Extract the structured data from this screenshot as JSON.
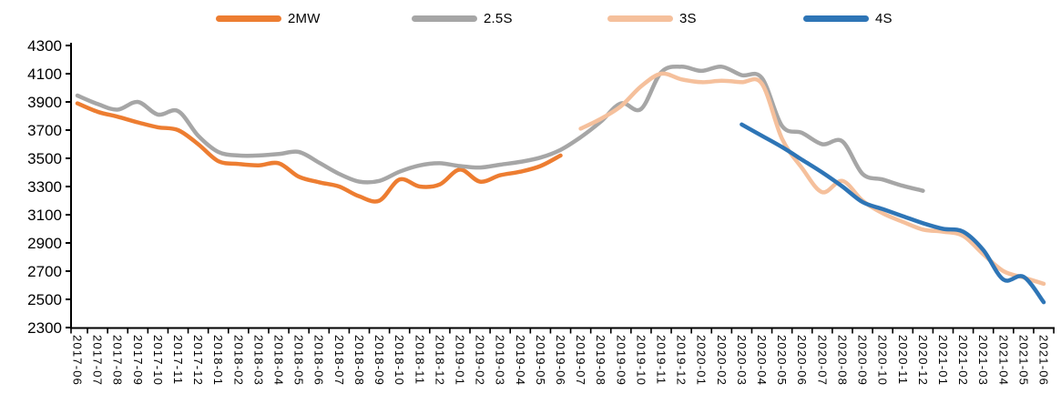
{
  "chart_data": {
    "type": "line",
    "title": "",
    "xlabel": "",
    "ylabel": "",
    "ylim": [
      2300,
      4300
    ],
    "yticks": [
      4300,
      4100,
      3900,
      3700,
      3500,
      3300,
      3100,
      2900,
      2700,
      2500,
      2300
    ],
    "grid": false,
    "legend_position": "top",
    "line_style": "smoothed",
    "x": [
      "2017-06",
      "2017-07",
      "2017-08",
      "2017-09",
      "2017-10",
      "2017-11",
      "2017-12",
      "2018-01",
      "2018-02",
      "2018-03",
      "2018-04",
      "2018-05",
      "2018-06",
      "2018-07",
      "2018-08",
      "2018-09",
      "2018-10",
      "2018-11",
      "2018-12",
      "2019-01",
      "2019-02",
      "2019-03",
      "2019-04",
      "2019-05",
      "2019-06",
      "2019-07",
      "2019-08",
      "2019-09",
      "2019-10",
      "2019-11",
      "2019-12",
      "2020-01",
      "2020-02",
      "2020-03",
      "2020-04",
      "2020-05",
      "2020-06",
      "2020-07",
      "2020-08",
      "2020-09",
      "2020-10",
      "2020-11",
      "2020-12",
      "2021-01",
      "2021-02",
      "2021-03",
      "2021-04",
      "2021-05",
      "2021-06"
    ],
    "series": [
      {
        "name": "2MW",
        "color": "#ED7D31",
        "values": [
          3890,
          3830,
          3795,
          3755,
          3720,
          3700,
          3600,
          3480,
          3460,
          3450,
          3465,
          3370,
          3330,
          3300,
          3230,
          3200,
          3350,
          3300,
          3315,
          3420,
          3335,
          3380,
          3405,
          3445,
          3520,
          null,
          null,
          null,
          null,
          null,
          null,
          null,
          null,
          null,
          null,
          null,
          null,
          null,
          null,
          null,
          null,
          null,
          null,
          null,
          null,
          null,
          null,
          null,
          null
        ]
      },
      {
        "name": "2.5S",
        "color": "#A6A6A6",
        "values": [
          3945,
          3885,
          3845,
          3900,
          3810,
          3835,
          3660,
          3545,
          3520,
          3520,
          3530,
          3545,
          3470,
          3390,
          3335,
          3340,
          3405,
          3450,
          3465,
          3445,
          3435,
          3455,
          3475,
          3505,
          3560,
          3650,
          3760,
          3890,
          3850,
          4110,
          4150,
          4120,
          4150,
          4090,
          4070,
          3730,
          3680,
          3600,
          3620,
          3390,
          3350,
          3305,
          3270,
          null,
          null,
          null,
          null,
          null,
          null
        ]
      },
      {
        "name": "3S",
        "color": "#F5C09C",
        "values": [
          null,
          null,
          null,
          null,
          null,
          null,
          null,
          null,
          null,
          null,
          null,
          null,
          null,
          null,
          null,
          null,
          null,
          null,
          null,
          null,
          null,
          null,
          null,
          null,
          null,
          3710,
          3780,
          3870,
          4010,
          4100,
          4060,
          4040,
          4050,
          4040,
          4030,
          3640,
          3430,
          3260,
          3340,
          3200,
          3110,
          3050,
          2995,
          2980,
          2950,
          2820,
          2700,
          2655,
          2610
        ]
      },
      {
        "name": "4S",
        "color": "#2E75B6",
        "values": [
          null,
          null,
          null,
          null,
          null,
          null,
          null,
          null,
          null,
          null,
          null,
          null,
          null,
          null,
          null,
          null,
          null,
          null,
          null,
          null,
          null,
          null,
          null,
          null,
          null,
          null,
          null,
          null,
          null,
          null,
          null,
          null,
          null,
          3740,
          3660,
          3580,
          3490,
          3400,
          3300,
          3190,
          3140,
          3090,
          3040,
          3000,
          2980,
          2850,
          2640,
          2660,
          2480
        ]
      }
    ]
  },
  "legend": {
    "items": [
      "2MW",
      "2.5S",
      "3S",
      "4S"
    ]
  },
  "axis_color": "#000000"
}
